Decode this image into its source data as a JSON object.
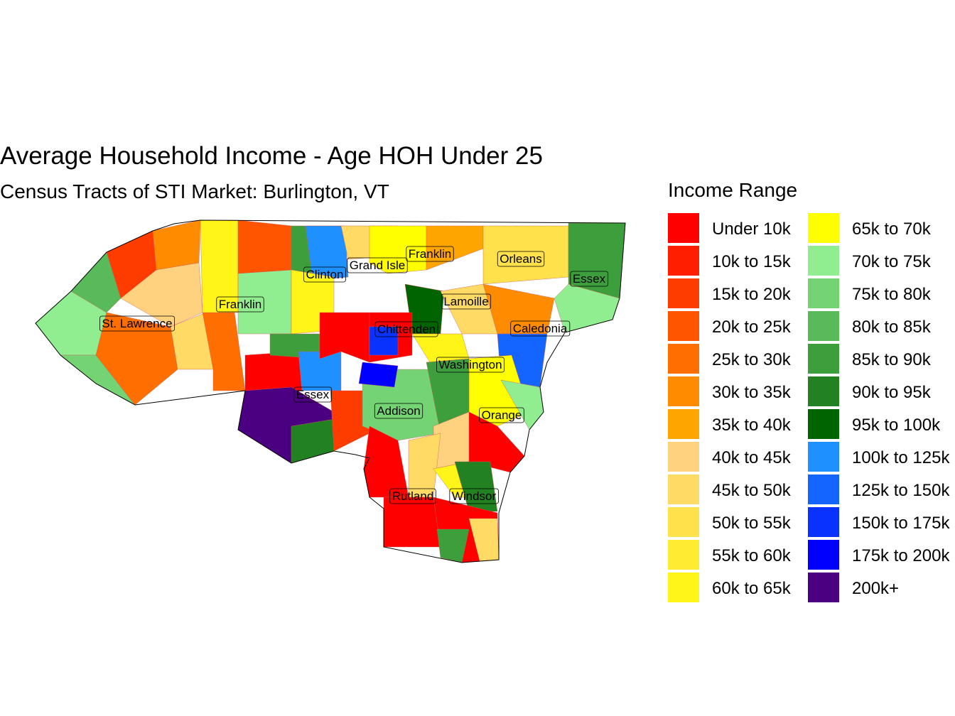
{
  "title": "Average Household Income - Age HOH Under 25",
  "subtitle": "Census Tracts of STI Market: Burlington, VT",
  "legend": {
    "title": "Income Range",
    "items": [
      {
        "label": "Under 10k",
        "color": "#FF0000"
      },
      {
        "label": "10k to 15k",
        "color": "#FF1E00"
      },
      {
        "label": "15k to 20k",
        "color": "#FF3C00"
      },
      {
        "label": "20k to 25k",
        "color": "#FF5500"
      },
      {
        "label": "25k to 30k",
        "color": "#FF6E00"
      },
      {
        "label": "30k to 35k",
        "color": "#FF8C00"
      },
      {
        "label": "35k to 40k",
        "color": "#FFA500"
      },
      {
        "label": "40k to 45k",
        "color": "#FFD27F"
      },
      {
        "label": "45k to 50k",
        "color": "#FFDA64"
      },
      {
        "label": "50k to 55k",
        "color": "#FFE14B"
      },
      {
        "label": "55k to 60k",
        "color": "#FFEB32"
      },
      {
        "label": "60k to 65k",
        "color": "#FFF519"
      },
      {
        "label": "65k to 70k",
        "color": "#FFFF00"
      },
      {
        "label": "70k to 75k",
        "color": "#90EE90"
      },
      {
        "label": "75k to 80k",
        "color": "#74D474"
      },
      {
        "label": "80k to 85k",
        "color": "#58BA58"
      },
      {
        "label": "85k to 90k",
        "color": "#3C9F3C"
      },
      {
        "label": "90k to 95k",
        "color": "#228222"
      },
      {
        "label": "95k to 100k",
        "color": "#006400"
      },
      {
        "label": "100k to 125k",
        "color": "#1E90FF"
      },
      {
        "label": "125k to 150k",
        "color": "#1464FF"
      },
      {
        "label": "150k to 175k",
        "color": "#0A32FF"
      },
      {
        "label": "175k to 200k",
        "color": "#0000FF"
      },
      {
        "label": "200k+",
        "color": "#4B0082"
      }
    ]
  },
  "counties": [
    {
      "name": "St. Lawrence"
    },
    {
      "name": "Franklin"
    },
    {
      "name": "Clinton"
    },
    {
      "name": "Grand Isle"
    },
    {
      "name": "Franklin"
    },
    {
      "name": "Orleans"
    },
    {
      "name": "Essex"
    },
    {
      "name": "Lamoille"
    },
    {
      "name": "Chittenden"
    },
    {
      "name": "Caledonia"
    },
    {
      "name": "Washington"
    },
    {
      "name": "Essex"
    },
    {
      "name": "Addison"
    },
    {
      "name": "Orange"
    },
    {
      "name": "Rutland"
    },
    {
      "name": "Windsor"
    }
  ]
}
